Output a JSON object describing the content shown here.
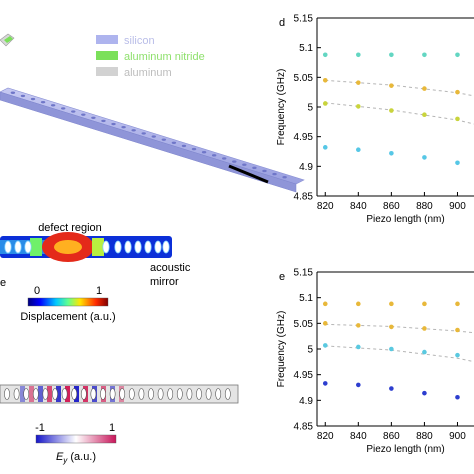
{
  "legend": {
    "items": [
      {
        "label": "silicon",
        "color": "#aeb4ee",
        "text_color": "#b9bde8"
      },
      {
        "label": "aluminum nitride",
        "color": "#7be05a",
        "text_color": "#8ee06c"
      },
      {
        "label": "aluminum",
        "color": "#d2d2d2",
        "text_color": "#bdbdbd"
      }
    ]
  },
  "displacement_map": {
    "defect_label": "defect region",
    "mirror_label": [
      "acoustic",
      "mirror"
    ],
    "cut_label": "e",
    "colorbar_min": "0",
    "colorbar_max": "1",
    "colorbar_title": "Displacement (a.u.)"
  },
  "field_map": {
    "colorbar_min": "-1",
    "colorbar_max": "1",
    "colorbar_title_main": "E",
    "colorbar_title_sub": "y",
    "colorbar_title_rest": " (a.u.)"
  },
  "chart_data": [
    {
      "panel_label": "d",
      "type": "scatter",
      "xlabel": "Piezo length (nm)",
      "ylabel": "Frequency (GHz)",
      "xlim": [
        815,
        910
      ],
      "ylim": [
        4.85,
        5.15
      ],
      "xticks": [
        "820",
        "840",
        "860",
        "880",
        "900",
        "9"
      ],
      "yticks": [
        "4.85",
        "4.9",
        "4.95",
        "5",
        "5.05",
        "5.1",
        "5.15"
      ],
      "series": [
        {
          "color": "#63d6c2",
          "x": [
            820,
            840,
            860,
            880,
            900
          ],
          "y": [
            5.088,
            5.088,
            5.088,
            5.088,
            5.088
          ]
        },
        {
          "color": "#e8b83a",
          "x": [
            820,
            840,
            860,
            880,
            900
          ],
          "y": [
            5.045,
            5.041,
            5.036,
            5.031,
            5.025
          ]
        },
        {
          "color": "#c9d43c",
          "x": [
            820,
            840,
            860,
            880,
            900
          ],
          "y": [
            5.006,
            5.001,
            4.994,
            4.987,
            4.98
          ]
        },
        {
          "color": "#56c7e6",
          "x": [
            820,
            840,
            860,
            880,
            900
          ],
          "y": [
            4.932,
            4.928,
            4.922,
            4.915,
            4.906
          ]
        }
      ],
      "fits": [
        {
          "x": [
            820,
            860,
            900,
            915
          ],
          "y": [
            5.045,
            5.037,
            5.024,
            5.016
          ]
        },
        {
          "x": [
            820,
            860,
            900,
            915
          ],
          "y": [
            5.007,
            4.995,
            4.978,
            4.968
          ]
        }
      ]
    },
    {
      "panel_label": "e",
      "type": "scatter",
      "xlabel": "Piezo length (nm)",
      "ylabel": "Frequency (GHz)",
      "xlim": [
        815,
        910
      ],
      "ylim": [
        4.85,
        5.15
      ],
      "xticks": [
        "820",
        "840",
        "860",
        "880",
        "900",
        "9"
      ],
      "yticks": [
        "4.85",
        "4.9",
        "4.95",
        "5",
        "5.05",
        "5.1",
        "5.15"
      ],
      "series": [
        {
          "color": "#e8b83a",
          "x": [
            820,
            840,
            860,
            880,
            900
          ],
          "y": [
            5.088,
            5.088,
            5.088,
            5.088,
            5.088
          ]
        },
        {
          "color": "#e8b83a",
          "x": [
            820,
            840,
            860,
            880,
            900
          ],
          "y": [
            5.05,
            5.046,
            5.043,
            5.04,
            5.037
          ]
        },
        {
          "color": "#5ac9e0",
          "x": [
            820,
            840,
            860,
            880,
            900
          ],
          "y": [
            5.007,
            5.004,
            5.0,
            4.994,
            4.988
          ]
        },
        {
          "color": "#2d3ecf",
          "x": [
            820,
            840,
            860,
            880,
            900
          ],
          "y": [
            4.933,
            4.93,
            4.923,
            4.914,
            4.906
          ]
        }
      ],
      "fits": [
        {
          "x": [
            820,
            860,
            900,
            915
          ],
          "y": [
            5.048,
            5.044,
            5.035,
            5.03
          ]
        },
        {
          "x": [
            820,
            860,
            900,
            915
          ],
          "y": [
            5.006,
            4.998,
            4.982,
            4.972
          ]
        }
      ]
    }
  ]
}
